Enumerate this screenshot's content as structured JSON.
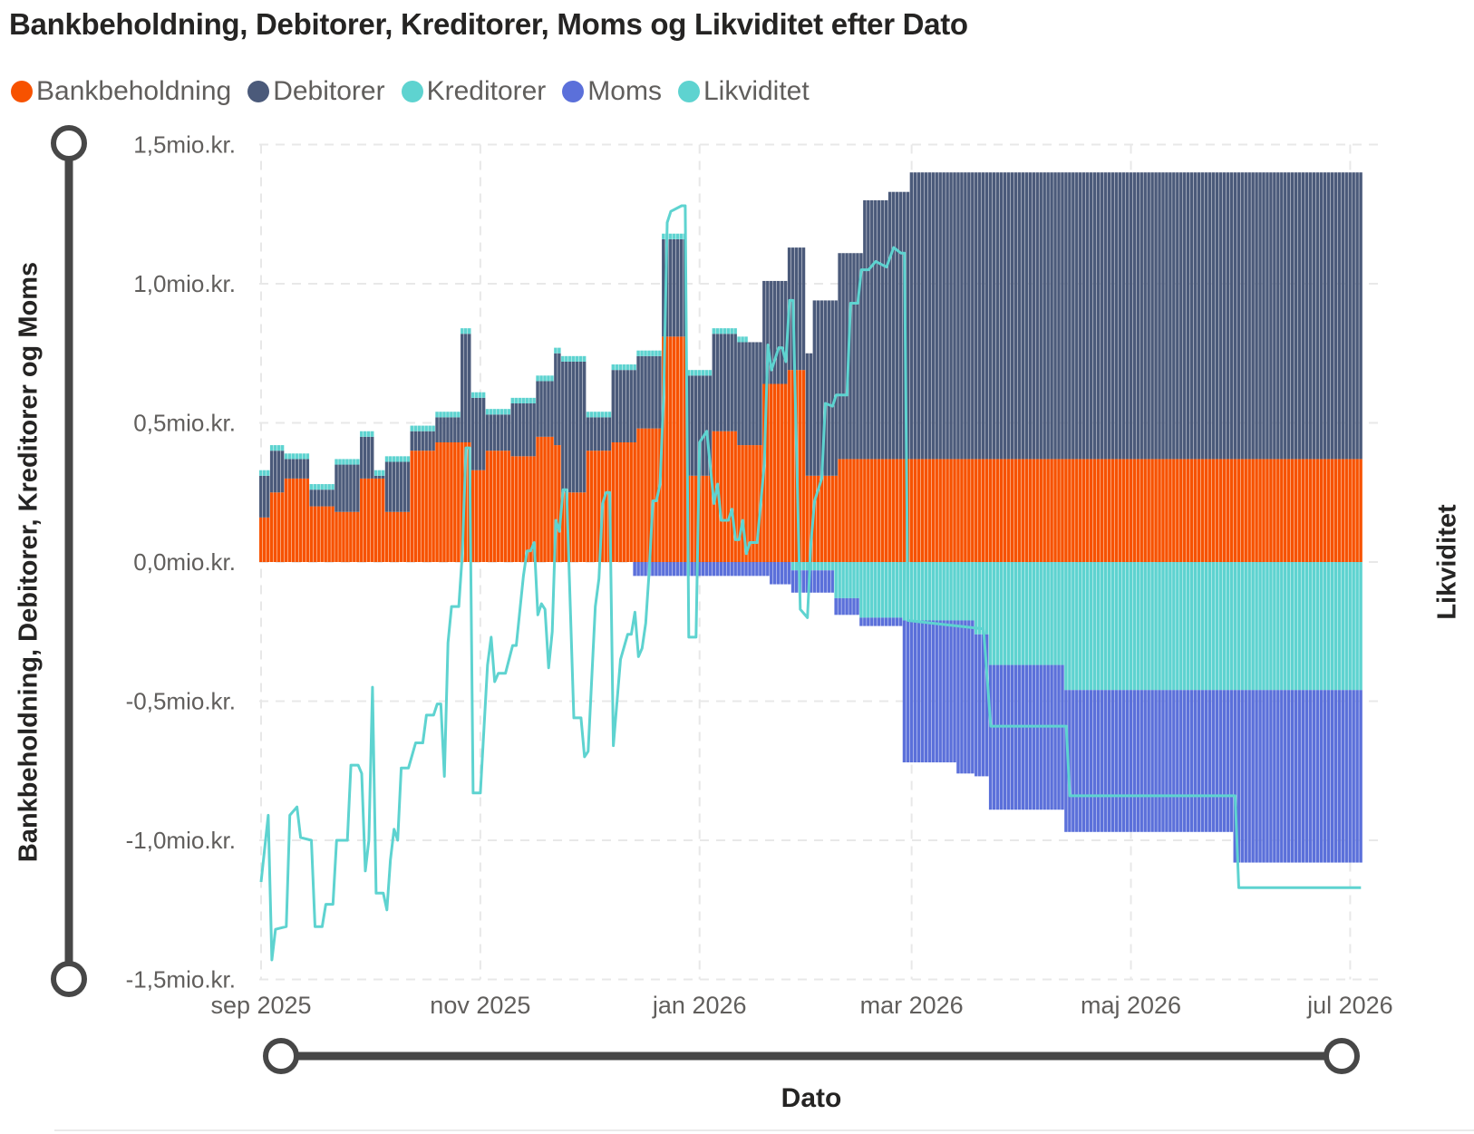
{
  "chart_data": {
    "type": "bar",
    "stacked": true,
    "title": "Bankbeholdning, Debitorer, Kreditorer, Moms og Likviditet efter Dato",
    "xlabel": "Dato",
    "ylabel": "Bankbeholdning, Debitorer, Kreditorer og Moms",
    "ylabel_secondary": "Likviditet",
    "unit": "mio.kr.",
    "ylim": [
      -1.5,
      1.5
    ],
    "yticks": [
      {
        "value": 1.5,
        "label": "1,5mio.kr."
      },
      {
        "value": 1.0,
        "label": "1,0mio.kr."
      },
      {
        "value": 0.5,
        "label": "0,5mio.kr."
      },
      {
        "value": 0.0,
        "label": "0,0mio.kr."
      },
      {
        "value": -0.5,
        "label": "-0,5mio.kr."
      },
      {
        "value": -1.0,
        "label": "-1,0mio.kr."
      },
      {
        "value": -1.5,
        "label": "-1,5mio.kr."
      }
    ],
    "xticks": [
      {
        "date": "2025-09-01",
        "label": "sep 2025"
      },
      {
        "date": "2025-11-01",
        "label": "nov 2025"
      },
      {
        "date": "2026-01-01",
        "label": "jan 2026"
      },
      {
        "date": "2026-03-01",
        "label": "mar 2026"
      },
      {
        "date": "2026-05-01",
        "label": "maj 2026"
      },
      {
        "date": "2026-07-01",
        "label": "jul 2026"
      }
    ],
    "x_range": [
      "2025-09-01",
      "2026-07-04"
    ],
    "grid": true,
    "legend_position": "top-left",
    "series_step_note_free": true,
    "series": [
      {
        "name": "Bankbeholdning",
        "color": "#F75200",
        "kind": "bar",
        "steps": [
          [
            "2025-09-01",
            0.16
          ],
          [
            "2025-09-04",
            0.25
          ],
          [
            "2025-09-08",
            0.3
          ],
          [
            "2025-09-15",
            0.2
          ],
          [
            "2025-09-22",
            0.18
          ],
          [
            "2025-09-29",
            0.3
          ],
          [
            "2025-10-06",
            0.18
          ],
          [
            "2025-10-13",
            0.4
          ],
          [
            "2025-10-20",
            0.43
          ],
          [
            "2025-10-30",
            0.33
          ],
          [
            "2025-11-03",
            0.4
          ],
          [
            "2025-11-10",
            0.38
          ],
          [
            "2025-11-17",
            0.45
          ],
          [
            "2025-11-22",
            0.42
          ],
          [
            "2025-11-24",
            0.25
          ],
          [
            "2025-12-01",
            0.4
          ],
          [
            "2025-12-08",
            0.43
          ],
          [
            "2025-12-15",
            0.48
          ],
          [
            "2025-12-22",
            0.81
          ],
          [
            "2025-12-29",
            0.31
          ],
          [
            "2026-01-05",
            0.47
          ],
          [
            "2026-01-12",
            0.42
          ],
          [
            "2026-01-19",
            0.64
          ],
          [
            "2026-01-26",
            0.69
          ],
          [
            "2026-01-31",
            0.31
          ],
          [
            "2026-02-09",
            0.37
          ]
        ]
      },
      {
        "name": "Debitorer",
        "color": "#4B5A7A",
        "kind": "bar",
        "steps": [
          [
            "2025-09-01",
            0.15
          ],
          [
            "2025-09-08",
            0.07
          ],
          [
            "2025-09-15",
            0.06
          ],
          [
            "2025-09-22",
            0.17
          ],
          [
            "2025-09-29",
            0.15
          ],
          [
            "2025-10-03",
            0.01
          ],
          [
            "2025-10-06",
            0.18
          ],
          [
            "2025-10-13",
            0.07
          ],
          [
            "2025-10-20",
            0.09
          ],
          [
            "2025-10-27",
            0.39
          ],
          [
            "2025-10-30",
            0.26
          ],
          [
            "2025-11-03",
            0.13
          ],
          [
            "2025-11-10",
            0.19
          ],
          [
            "2025-11-17",
            0.2
          ],
          [
            "2025-11-22",
            0.33
          ],
          [
            "2025-11-24",
            0.47
          ],
          [
            "2025-12-01",
            0.12
          ],
          [
            "2025-12-08",
            0.26
          ],
          [
            "2025-12-22",
            0.35
          ],
          [
            "2025-12-29",
            0.36
          ],
          [
            "2026-01-05",
            0.35
          ],
          [
            "2026-01-12",
            0.37
          ],
          [
            "2026-01-26",
            0.44
          ],
          [
            "2026-02-02",
            0.63
          ],
          [
            "2026-02-09",
            0.74
          ],
          [
            "2026-02-16",
            0.93
          ],
          [
            "2026-02-23",
            0.96
          ],
          [
            "2026-03-01",
            1.03
          ]
        ]
      },
      {
        "name": "Kreditorer",
        "color": "#5ED3D0",
        "kind": "bar",
        "steps": [
          [
            "2025-09-01",
            0.02
          ],
          [
            "2026-01-15",
            0.0
          ],
          [
            "2026-01-27",
            -0.03
          ],
          [
            "2026-02-08",
            -0.13
          ],
          [
            "2026-02-15",
            -0.2
          ],
          [
            "2026-02-27",
            -0.21
          ],
          [
            "2026-03-19",
            -0.26
          ],
          [
            "2026-03-23",
            -0.37
          ],
          [
            "2026-04-13",
            -0.46
          ]
        ]
      },
      {
        "name": "Moms",
        "color": "#5B70DA",
        "kind": "bar",
        "steps": [
          [
            "2025-09-01",
            0.0
          ],
          [
            "2025-12-14",
            -0.05
          ],
          [
            "2026-01-21",
            -0.08
          ],
          [
            "2026-02-08",
            -0.06
          ],
          [
            "2026-02-15",
            -0.03
          ],
          [
            "2026-02-27",
            -0.51
          ],
          [
            "2026-03-14",
            -0.55
          ],
          [
            "2026-03-19",
            -0.51
          ],
          [
            "2026-03-23",
            -0.52
          ],
          [
            "2026-04-13",
            -0.51
          ],
          [
            "2026-05-30",
            -0.62
          ]
        ]
      },
      {
        "name": "Likviditet",
        "color": "#5ED3D0",
        "kind": "line",
        "points": [
          [
            "2025-09-01",
            -1.15
          ],
          [
            "2025-09-03",
            -0.91
          ],
          [
            "2025-09-04",
            -1.43
          ],
          [
            "2025-09-05",
            -1.32
          ],
          [
            "2025-09-08",
            -1.31
          ],
          [
            "2025-09-09",
            -0.91
          ],
          [
            "2025-09-11",
            -0.88
          ],
          [
            "2025-09-12",
            -0.99
          ],
          [
            "2025-09-15",
            -1.0
          ],
          [
            "2025-09-16",
            -1.31
          ],
          [
            "2025-09-18",
            -1.31
          ],
          [
            "2025-09-19",
            -1.23
          ],
          [
            "2025-09-21",
            -1.23
          ],
          [
            "2025-09-22",
            -1.0
          ],
          [
            "2025-09-25",
            -1.0
          ],
          [
            "2025-09-26",
            -0.73
          ],
          [
            "2025-09-28",
            -0.73
          ],
          [
            "2025-09-29",
            -0.76
          ],
          [
            "2025-09-30",
            -1.11
          ],
          [
            "2025-10-01",
            -1.0
          ],
          [
            "2025-10-02",
            -0.45
          ],
          [
            "2025-10-03",
            -1.19
          ],
          [
            "2025-10-05",
            -1.19
          ],
          [
            "2025-10-06",
            -1.25
          ],
          [
            "2025-10-07",
            -1.07
          ],
          [
            "2025-10-08",
            -0.96
          ],
          [
            "2025-10-09",
            -1.0
          ],
          [
            "2025-10-10",
            -0.74
          ],
          [
            "2025-10-12",
            -0.74
          ],
          [
            "2025-10-14",
            -0.65
          ],
          [
            "2025-10-16",
            -0.65
          ],
          [
            "2025-10-17",
            -0.55
          ],
          [
            "2025-10-19",
            -0.55
          ],
          [
            "2025-10-20",
            -0.51
          ],
          [
            "2025-10-21",
            -0.51
          ],
          [
            "2025-10-22",
            -0.77
          ],
          [
            "2025-10-23",
            -0.29
          ],
          [
            "2025-10-24",
            -0.16
          ],
          [
            "2025-10-26",
            -0.16
          ],
          [
            "2025-10-27",
            0.03
          ],
          [
            "2025-10-28",
            0.41
          ],
          [
            "2025-10-29",
            0.41
          ],
          [
            "2025-10-30",
            -0.83
          ],
          [
            "2025-11-01",
            -0.83
          ],
          [
            "2025-11-03",
            -0.37
          ],
          [
            "2025-11-04",
            -0.27
          ],
          [
            "2025-11-05",
            -0.43
          ],
          [
            "2025-11-06",
            -0.4
          ],
          [
            "2025-11-08",
            -0.4
          ],
          [
            "2025-11-10",
            -0.3
          ],
          [
            "2025-11-11",
            -0.3
          ],
          [
            "2025-11-13",
            -0.05
          ],
          [
            "2025-11-14",
            0.04
          ],
          [
            "2025-11-15",
            0.04
          ],
          [
            "2025-11-16",
            0.07
          ],
          [
            "2025-11-17",
            -0.19
          ],
          [
            "2025-11-18",
            -0.15
          ],
          [
            "2025-11-19",
            -0.17
          ],
          [
            "2025-11-20",
            -0.38
          ],
          [
            "2025-11-21",
            -0.25
          ],
          [
            "2025-11-22",
            0.15
          ],
          [
            "2025-11-23",
            0.11
          ],
          [
            "2025-11-24",
            0.26
          ],
          [
            "2025-11-25",
            0.26
          ],
          [
            "2025-11-27",
            -0.56
          ],
          [
            "2025-11-29",
            -0.56
          ],
          [
            "2025-11-30",
            -0.7
          ],
          [
            "2025-12-01",
            -0.68
          ],
          [
            "2025-12-03",
            -0.16
          ],
          [
            "2025-12-04",
            -0.06
          ],
          [
            "2025-12-05",
            0.21
          ],
          [
            "2025-12-06",
            0.25
          ],
          [
            "2025-12-07",
            0.25
          ],
          [
            "2025-12-08",
            -0.66
          ],
          [
            "2025-12-10",
            -0.35
          ],
          [
            "2025-12-12",
            -0.26
          ],
          [
            "2025-12-13",
            -0.26
          ],
          [
            "2025-12-14",
            -0.18
          ],
          [
            "2025-12-15",
            -0.34
          ],
          [
            "2025-12-16",
            -0.31
          ],
          [
            "2025-12-17",
            -0.22
          ],
          [
            "2025-12-18",
            -0.03
          ],
          [
            "2025-12-19",
            0.22
          ],
          [
            "2025-12-20",
            0.22
          ],
          [
            "2025-12-21",
            0.28
          ],
          [
            "2025-12-22",
            0.6
          ],
          [
            "2025-12-23",
            1.22
          ],
          [
            "2025-12-24",
            1.26
          ],
          [
            "2025-12-27",
            1.28
          ],
          [
            "2025-12-28",
            1.28
          ],
          [
            "2025-12-29",
            -0.27
          ],
          [
            "2025-12-31",
            -0.27
          ],
          [
            "2026-01-01",
            0.43
          ],
          [
            "2026-01-03",
            0.47
          ],
          [
            "2026-01-05",
            0.21
          ],
          [
            "2026-01-06",
            0.28
          ],
          [
            "2026-01-07",
            0.15
          ],
          [
            "2026-01-09",
            0.15
          ],
          [
            "2026-01-10",
            0.19
          ],
          [
            "2026-01-11",
            0.08
          ],
          [
            "2026-01-12",
            0.08
          ],
          [
            "2026-01-13",
            0.15
          ],
          [
            "2026-01-14",
            0.03
          ],
          [
            "2026-01-15",
            0.07
          ],
          [
            "2026-01-17",
            0.07
          ],
          [
            "2026-01-19",
            0.35
          ],
          [
            "2026-01-20",
            0.78
          ],
          [
            "2026-01-21",
            0.69
          ],
          [
            "2026-01-23",
            0.77
          ],
          [
            "2026-01-24",
            0.77
          ],
          [
            "2026-01-25",
            0.72
          ],
          [
            "2026-01-26",
            0.94
          ],
          [
            "2026-01-27",
            0.94
          ],
          [
            "2026-01-29",
            -0.17
          ],
          [
            "2026-01-31",
            -0.2
          ],
          [
            "2026-02-01",
            0.07
          ],
          [
            "2026-02-02",
            0.22
          ],
          [
            "2026-02-04",
            0.3
          ],
          [
            "2026-02-05",
            0.57
          ],
          [
            "2026-02-07",
            0.56
          ],
          [
            "2026-02-08",
            0.6
          ],
          [
            "2026-02-11",
            0.6
          ],
          [
            "2026-02-12",
            0.93
          ],
          [
            "2026-02-14",
            0.93
          ],
          [
            "2026-02-15",
            1.05
          ],
          [
            "2026-02-17",
            1.05
          ],
          [
            "2026-02-19",
            1.08
          ],
          [
            "2026-02-22",
            1.06
          ],
          [
            "2026-02-24",
            1.13
          ],
          [
            "2026-02-26",
            1.11
          ],
          [
            "2026-02-27",
            1.11
          ],
          [
            "2026-02-28",
            -0.21
          ],
          [
            "2026-03-21",
            -0.24
          ],
          [
            "2026-03-23",
            -0.59
          ],
          [
            "2026-04-13",
            -0.59
          ],
          [
            "2026-04-14",
            -0.84
          ],
          [
            "2026-05-30",
            -0.84
          ],
          [
            "2026-05-31",
            -1.17
          ],
          [
            "2026-07-04",
            -1.17
          ]
        ]
      }
    ]
  },
  "legend": [
    {
      "label": "Bankbeholdning",
      "color": "#F75200"
    },
    {
      "label": "Debitorer",
      "color": "#4B5A7A"
    },
    {
      "label": "Kreditorer",
      "color": "#5ED3D0"
    },
    {
      "label": "Moms",
      "color": "#5B70DA"
    },
    {
      "label": "Likviditet",
      "color": "#5ED3D0"
    }
  ],
  "icons": {
    "y_range_slider": "slider-handle-icon",
    "x_range_slider": "slider-handle-icon"
  }
}
